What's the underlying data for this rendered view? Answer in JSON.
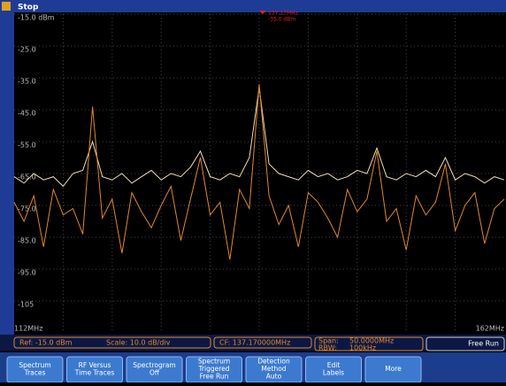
{
  "status": "Stop",
  "chart_data": {
    "type": "line",
    "x": [
      112,
      113,
      114,
      115,
      116,
      117,
      118,
      119,
      120,
      121,
      122,
      123,
      124,
      125,
      126,
      127,
      128,
      129,
      130,
      131,
      132,
      133,
      134,
      135,
      136,
      137,
      138,
      139,
      140,
      141,
      142,
      143,
      144,
      145,
      146,
      147,
      148,
      149,
      150,
      151,
      152,
      153,
      154,
      155,
      156,
      157,
      158,
      159,
      160,
      161,
      162
    ],
    "xlim": [
      112,
      162
    ],
    "xticks": [
      {
        "value": 112,
        "label": "112MHz"
      },
      {
        "value": 162,
        "label": "162MHz"
      }
    ],
    "ylim": [
      -115,
      -15
    ],
    "yticks": [
      {
        "value": -15,
        "label": "-15.0 dBm"
      },
      {
        "value": -25,
        "label": "-25.0"
      },
      {
        "value": -35,
        "label": "-35.0"
      },
      {
        "value": -45,
        "label": "-45.0"
      },
      {
        "value": -55,
        "label": "-55.0"
      },
      {
        "value": -65,
        "label": "-65.0"
      },
      {
        "value": -75,
        "label": "-75.0"
      },
      {
        "value": -85,
        "label": "-85.0"
      },
      {
        "value": -95,
        "label": "-95.0"
      },
      -105
    ],
    "grid": true,
    "series": [
      {
        "color": "#e0882a",
        "values": [
          -74,
          -80,
          -72,
          -88,
          -70,
          -78,
          -76,
          -84,
          -44,
          -79,
          -73,
          -90,
          -71,
          -77,
          -82,
          -75,
          -69,
          -86,
          -73,
          -60,
          -78,
          -74,
          -92,
          -70,
          -76,
          -37,
          -72,
          -81,
          -75,
          -88,
          -71,
          -74,
          -79,
          -85,
          -70,
          -77,
          -73,
          -58,
          -80,
          -76,
          -89,
          -72,
          -78,
          -74,
          -62,
          -83,
          -75,
          -71,
          -87,
          -76,
          -73
        ]
      },
      {
        "color": "#f2dcb4",
        "values": [
          -66,
          -68,
          -65,
          -67,
          -66,
          -69,
          -65,
          -64,
          -55,
          -66,
          -67,
          -65,
          -68,
          -66,
          -64,
          -67,
          -65,
          -66,
          -63,
          -58,
          -66,
          -67,
          -65,
          -66,
          -60,
          -38,
          -62,
          -65,
          -66,
          -67,
          -64,
          -66,
          -65,
          -67,
          -66,
          -64,
          -65,
          -57,
          -66,
          -67,
          -65,
          -66,
          -64,
          -66,
          -60,
          -67,
          -65,
          -66,
          -68,
          -66,
          -67
        ]
      }
    ],
    "marker": {
      "frequency": "137.17MHz",
      "level": "-35.0 dBm"
    }
  },
  "readouts": {
    "ref": "Ref: -15.0 dBm",
    "scale": "Scale: 10.0 dB/div",
    "cf": "CF: 137.170000MHz",
    "span_label": "Span:",
    "span": "50.0000MHz",
    "rbw_label": "RBW:",
    "rbw": "100kHz",
    "trigger": "Free Run"
  },
  "buttons": [
    [
      "Spectrum",
      "Traces"
    ],
    [
      "RF Versus",
      "Time Traces"
    ],
    [
      "Spectrogram",
      "Off"
    ],
    [
      "Spectrum",
      "Triggered",
      "Free Run"
    ],
    [
      "Detection",
      "Method",
      "Auto"
    ],
    [
      "Edit",
      "Labels"
    ],
    [
      "More"
    ]
  ]
}
